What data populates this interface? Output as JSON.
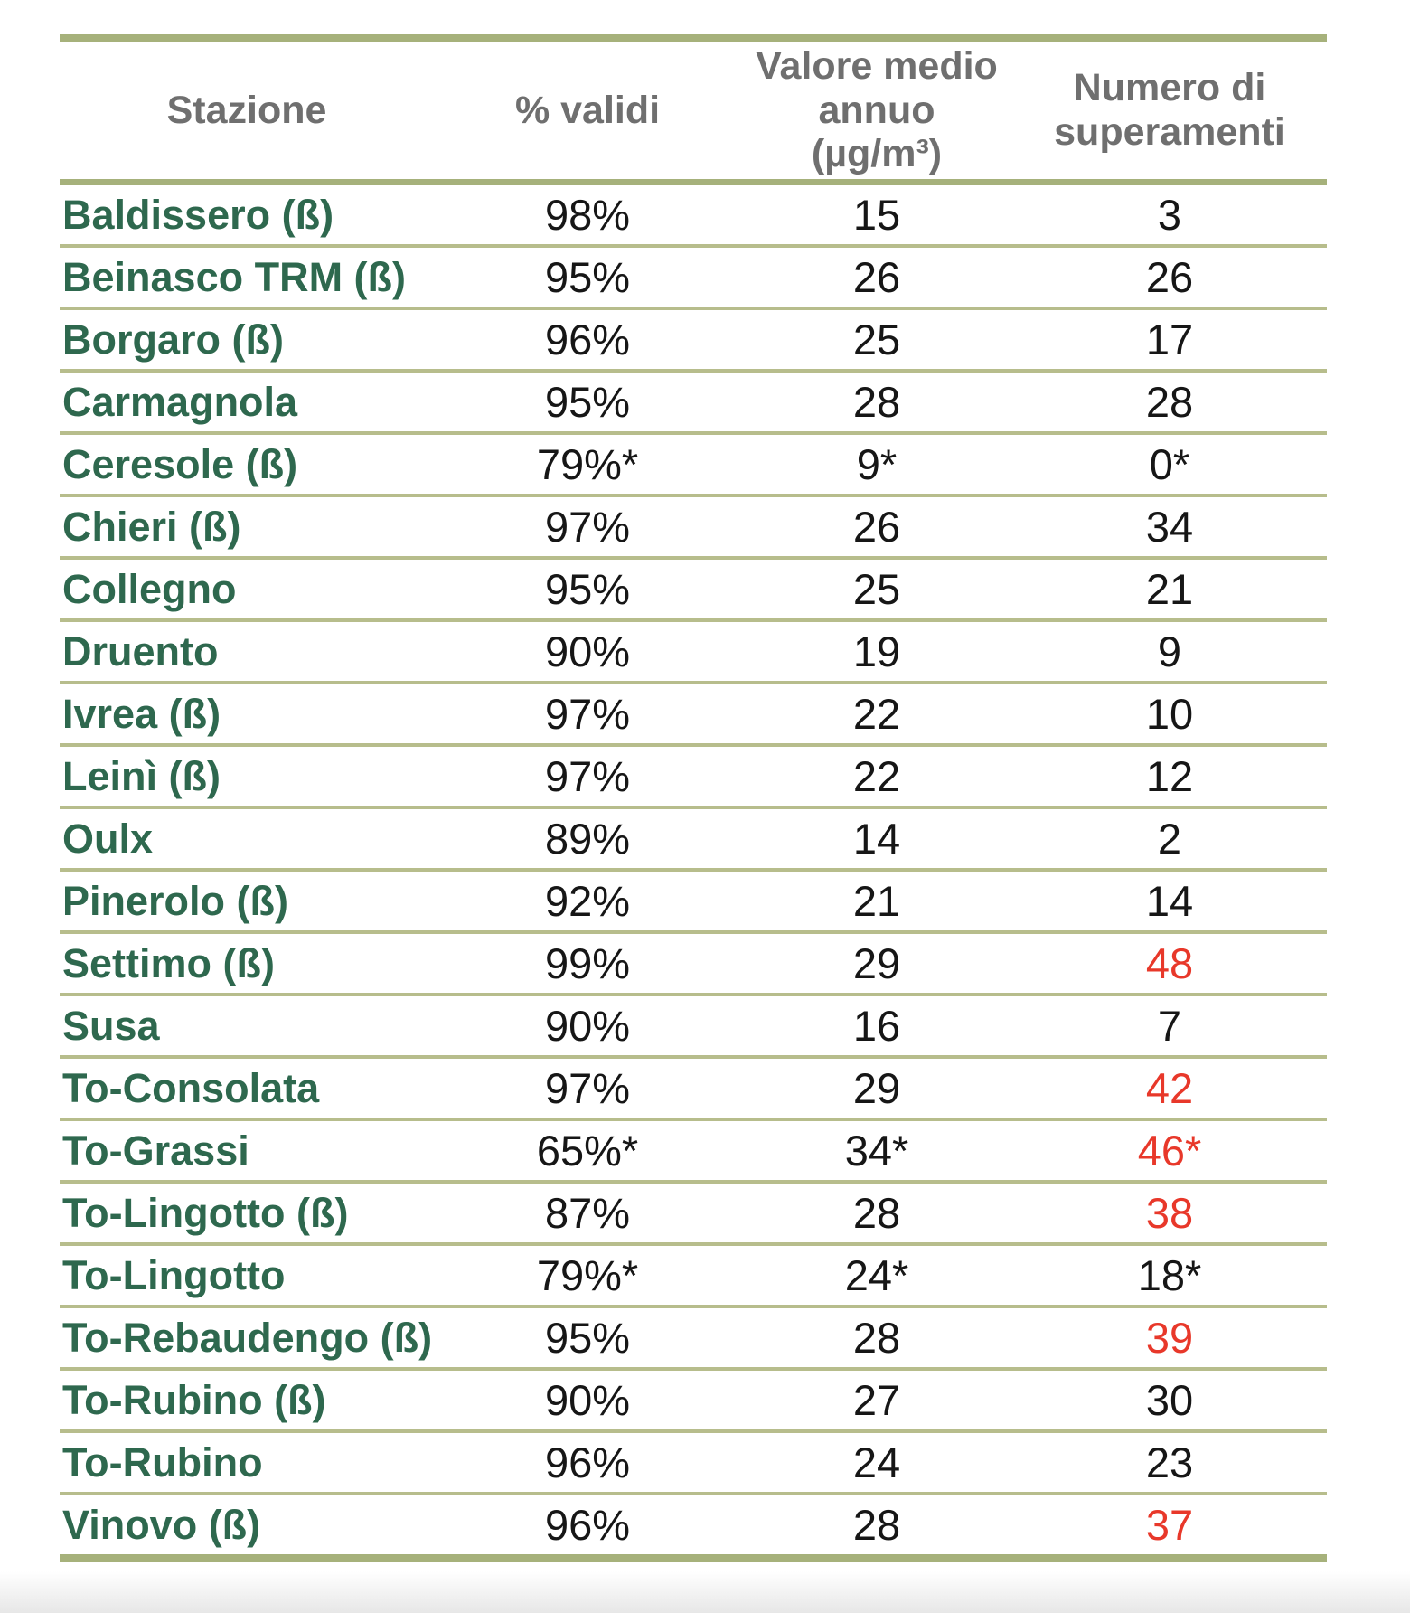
{
  "table": {
    "headers": [
      "Stazione",
      "% validi",
      "Valore medio\nannuo\n(µg/m³)",
      "Numero di\nsuperamenti"
    ],
    "rows": [
      {
        "station": "Baldissero (ß)",
        "validi": "98%",
        "media": "15",
        "superamenti": "3",
        "red": false
      },
      {
        "station": "Beinasco TRM (ß)",
        "validi": "95%",
        "media": "26",
        "superamenti": "26",
        "red": false
      },
      {
        "station": "Borgaro (ß)",
        "validi": "96%",
        "media": "25",
        "superamenti": "17",
        "red": false
      },
      {
        "station": "Carmagnola",
        "validi": "95%",
        "media": "28",
        "superamenti": "28",
        "red": false
      },
      {
        "station": "Ceresole (ß)",
        "validi": "79%*",
        "media": "9*",
        "superamenti": "0*",
        "red": false
      },
      {
        "station": "Chieri (ß)",
        "validi": "97%",
        "media": "26",
        "superamenti": "34",
        "red": false
      },
      {
        "station": "Collegno",
        "validi": "95%",
        "media": "25",
        "superamenti": "21",
        "red": false
      },
      {
        "station": "Druento",
        "validi": "90%",
        "media": "19",
        "superamenti": "9",
        "red": false
      },
      {
        "station": "Ivrea (ß)",
        "validi": "97%",
        "media": "22",
        "superamenti": "10",
        "red": false
      },
      {
        "station": "Leinì (ß)",
        "validi": "97%",
        "media": "22",
        "superamenti": "12",
        "red": false
      },
      {
        "station": "Oulx",
        "validi": "89%",
        "media": "14",
        "superamenti": "2",
        "red": false
      },
      {
        "station": "Pinerolo (ß)",
        "validi": "92%",
        "media": "21",
        "superamenti": "14",
        "red": false
      },
      {
        "station": "Settimo (ß)",
        "validi": "99%",
        "media": "29",
        "superamenti": "48",
        "red": true
      },
      {
        "station": "Susa",
        "validi": "90%",
        "media": "16",
        "superamenti": "7",
        "red": false
      },
      {
        "station": "To-Consolata",
        "validi": "97%",
        "media": "29",
        "superamenti": "42",
        "red": true
      },
      {
        "station": "To-Grassi",
        "validi": "65%*",
        "media": "34*",
        "superamenti": "46*",
        "red": true
      },
      {
        "station": "To-Lingotto (ß)",
        "validi": "87%",
        "media": "28",
        "superamenti": "38",
        "red": true
      },
      {
        "station": "To-Lingotto",
        "validi": "79%*",
        "media": "24*",
        "superamenti": "18*",
        "red": false
      },
      {
        "station": "To-Rebaudengo (ß)",
        "validi": "95%",
        "media": "28",
        "superamenti": "39",
        "red": true
      },
      {
        "station": "To-Rubino (ß)",
        "validi": "90%",
        "media": "27",
        "superamenti": "30",
        "red": false
      },
      {
        "station": "To-Rubino",
        "validi": "96%",
        "media": "24",
        "superamenti": "23",
        "red": false
      },
      {
        "station": "Vinovo (ß)",
        "validi": "96%",
        "media": "28",
        "superamenti": "37",
        "red": true
      }
    ]
  },
  "colors": {
    "green": "#2E684E",
    "olive": "#A6B17B",
    "olive_light": "#B7BD8C",
    "gray": "#6F6F6F",
    "ink": "#161616",
    "red": "#E8382A"
  }
}
